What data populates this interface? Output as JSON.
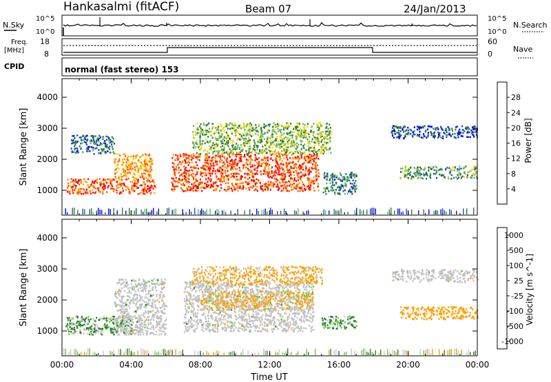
{
  "header": {
    "station": "Hankasalmi (fitACF)",
    "beam": "Beam 07",
    "date": "24/Jan/2013"
  },
  "top_panels": {
    "nsky_label": "N.Sky",
    "nsky_ticks": [
      "10^5",
      "10^0"
    ],
    "nsearch_label": "N.Search",
    "nsearch_ticks": [
      "10^5",
      "10^0"
    ],
    "freq_label_1": "Freq.",
    "freq_label_2": "[MHz]",
    "freq_ticks": [
      "18",
      "8"
    ],
    "nave_label": "Nave",
    "nave_ticks": [
      "60",
      "0"
    ],
    "cpid_label": "CPID",
    "cpid_text": "normal (fast stereo) 153"
  },
  "colors": {
    "power_scale": [
      "#0000ff",
      "#1e50b4",
      "#2e7d32",
      "#66bb6a",
      "#ffd200",
      "#ffa000",
      "#ff5a00",
      "#ff0000"
    ],
    "velocity_scale": [
      "#1e3cc8",
      "#2e7d32",
      "#66cc33",
      "#c8c8c8",
      "#c8c8c8",
      "#ffa000",
      "#ff6400",
      "#ff0000"
    ],
    "ground_scatter": "#c0c0c0"
  },
  "chart_data": [
    {
      "type": "heatmap",
      "panel": "power",
      "ylabel": "Slant Range [km]",
      "xlabel": "",
      "x_ticks": [
        "00:00",
        "04:00",
        "08:00",
        "12:00",
        "16:00",
        "20:00",
        "00:00"
      ],
      "y_ticks": [
        1000,
        2000,
        3000,
        4000
      ],
      "ylim": [
        200,
        4600
      ],
      "xlim_hours": [
        0,
        24
      ],
      "colorbar": {
        "label": "Power [dB]",
        "ticks": [
          "4",
          "8",
          "12",
          "16",
          "20",
          "24",
          "28"
        ],
        "range": [
          0,
          32
        ]
      },
      "features": [
        {
          "t0": 0.2,
          "t1": 5.4,
          "r0": 900,
          "r1": 1400,
          "level": 26
        },
        {
          "t0": 3.0,
          "t1": 5.2,
          "r0": 1400,
          "r1": 2200,
          "level": 22
        },
        {
          "t0": 0.5,
          "t1": 3.0,
          "r0": 2200,
          "r1": 2800,
          "level": 8
        },
        {
          "t0": 6.3,
          "t1": 14.8,
          "r0": 1000,
          "r1": 2200,
          "level": 27
        },
        {
          "t0": 7.5,
          "t1": 15.5,
          "r0": 2200,
          "r1": 3200,
          "level": 14
        },
        {
          "t0": 15.0,
          "t1": 17.0,
          "r0": 900,
          "r1": 1600,
          "level": 9
        },
        {
          "t0": 19.5,
          "t1": 24.0,
          "r0": 1400,
          "r1": 1800,
          "level": 12
        },
        {
          "t0": 19.0,
          "t1": 24.0,
          "r0": 2700,
          "r1": 3100,
          "level": 6
        }
      ]
    },
    {
      "type": "heatmap",
      "panel": "velocity",
      "ylabel": "Slant Range [km]",
      "xlabel": "Time UT",
      "x_ticks": [
        "00:00",
        "04:00",
        "08:00",
        "12:00",
        "16:00",
        "20:00",
        "00:00"
      ],
      "y_ticks": [
        1000,
        2000,
        3000,
        4000
      ],
      "ylim": [
        200,
        4600
      ],
      "xlim_hours": [
        0,
        24
      ],
      "colorbar": {
        "label": "Velocity [m s^-1]",
        "ticks": [
          "1000",
          "500",
          "100",
          "25",
          "-25",
          "-100",
          "-500",
          "-1000"
        ]
      },
      "features": [
        {
          "t0": 0.2,
          "t1": 4.0,
          "r0": 900,
          "r1": 1500,
          "velocity": 150
        },
        {
          "t0": 3.0,
          "t1": 6.0,
          "r0": 900,
          "r1": 2700,
          "velocity": 0,
          "ground_scatter": true
        },
        {
          "t0": 7.0,
          "t1": 14.5,
          "r0": 1000,
          "r1": 2600,
          "velocity": 0,
          "ground_scatter": true
        },
        {
          "t0": 8.0,
          "t1": 14.5,
          "r0": 1700,
          "r1": 2300,
          "velocity": -150
        },
        {
          "t0": 7.5,
          "t1": 15.0,
          "r0": 2500,
          "r1": 3100,
          "velocity": -200
        },
        {
          "t0": 15.0,
          "t1": 17.0,
          "r0": 1100,
          "r1": 1500,
          "velocity": 120
        },
        {
          "t0": 19.5,
          "t1": 24.0,
          "r0": 1400,
          "r1": 1800,
          "velocity": -300
        },
        {
          "t0": 19.0,
          "t1": 24.0,
          "r0": 2600,
          "r1": 3000,
          "velocity": 0,
          "ground_scatter": true
        }
      ]
    }
  ]
}
